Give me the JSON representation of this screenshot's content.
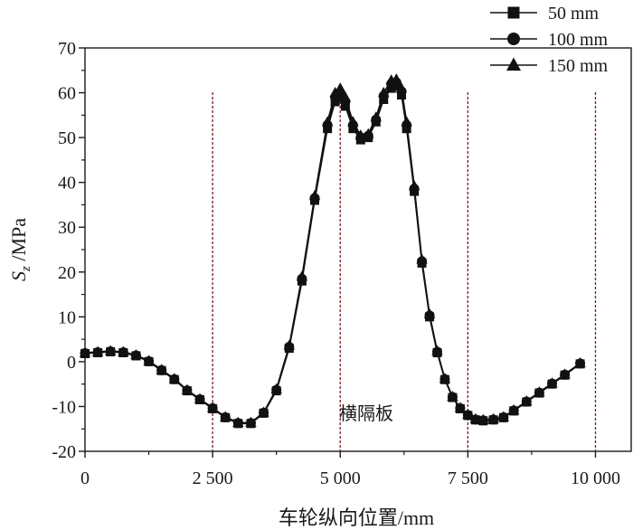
{
  "chart_data": {
    "type": "scatter",
    "xlabel": "车轮纵向位置/mm",
    "ylabel_main": "S",
    "ylabel_sub": "z",
    "ylabel_rest": " /MPa",
    "xlim": [
      0,
      10700
    ],
    "ylim": [
      -20,
      70
    ],
    "xticks": [
      0,
      2500,
      5000,
      7500,
      10000
    ],
    "xtick_labels": [
      "0",
      "2 500",
      "5 000",
      "7 500",
      "10 000"
    ],
    "yticks": [
      -20,
      -10,
      0,
      10,
      20,
      30,
      40,
      50,
      60,
      70
    ],
    "ytick_labels": [
      "-20",
      "-10",
      "0",
      "10",
      "20",
      "30",
      "40",
      "50",
      "60",
      "70"
    ],
    "reference_lines_x": [
      2500,
      5000,
      7500,
      10000
    ],
    "annotation": "横隔板",
    "legend_position": "top-right",
    "x": [
      0,
      250,
      500,
      750,
      1000,
      1250,
      1500,
      1750,
      2000,
      2250,
      2500,
      2750,
      3000,
      3250,
      3500,
      3750,
      4000,
      4250,
      4500,
      4750,
      4900,
      5000,
      5100,
      5250,
      5400,
      5550,
      5700,
      5850,
      6000,
      6100,
      6200,
      6300,
      6450,
      6600,
      6750,
      6900,
      7050,
      7200,
      7350,
      7500,
      7650,
      7800,
      8000,
      8200,
      8400,
      8650,
      8900,
      9150,
      9400,
      9700
    ],
    "series": [
      {
        "name": "50 mm",
        "marker": "square",
        "values": [
          1.8,
          2.0,
          2.2,
          2.0,
          1.3,
          0.0,
          -2.0,
          -4.0,
          -6.5,
          -8.5,
          -10.5,
          -12.5,
          -13.8,
          -13.8,
          -11.5,
          -6.5,
          3.0,
          18.0,
          36.0,
          52.0,
          58.0,
          59.0,
          57.0,
          52.0,
          49.5,
          50.0,
          53.5,
          58.5,
          61.0,
          61.5,
          59.5,
          52.0,
          38.0,
          22.0,
          10.0,
          2.0,
          -4.0,
          -8.0,
          -10.5,
          -12.0,
          -13.0,
          -13.2,
          -13.0,
          -12.5,
          -11.0,
          -9.0,
          -7.0,
          -5.0,
          -3.0,
          -0.5
        ]
      },
      {
        "name": "100 mm",
        "marker": "circle",
        "values": [
          1.9,
          2.1,
          2.3,
          2.1,
          1.4,
          0.1,
          -1.9,
          -3.9,
          -6.4,
          -8.4,
          -10.4,
          -12.4,
          -13.7,
          -13.7,
          -11.4,
          -6.3,
          3.3,
          18.5,
          36.5,
          52.8,
          59.0,
          60.0,
          58.0,
          52.8,
          50.0,
          50.4,
          54.0,
          59.3,
          62.0,
          62.3,
          60.3,
          52.8,
          38.6,
          22.4,
          10.3,
          2.2,
          -3.9,
          -7.9,
          -10.4,
          -11.9,
          -12.9,
          -13.1,
          -12.9,
          -12.4,
          -10.9,
          -8.9,
          -6.9,
          -4.9,
          -2.9,
          -0.4
        ]
      },
      {
        "name": "150 mm",
        "marker": "triangle",
        "values": [
          2.0,
          2.2,
          2.4,
          2.2,
          1.5,
          0.2,
          -1.8,
          -3.8,
          -6.3,
          -8.3,
          -10.3,
          -12.3,
          -13.6,
          -13.6,
          -11.3,
          -6.1,
          3.6,
          19.0,
          37.0,
          53.5,
          60.0,
          61.0,
          59.0,
          53.5,
          50.5,
          50.8,
          54.5,
          60.0,
          62.8,
          63.0,
          61.0,
          53.5,
          39.2,
          22.8,
          10.6,
          2.4,
          -3.8,
          -7.8,
          -10.3,
          -11.8,
          -12.8,
          -13.0,
          -12.8,
          -12.3,
          -10.8,
          -8.8,
          -6.8,
          -4.8,
          -2.8,
          -0.3
        ]
      }
    ]
  }
}
